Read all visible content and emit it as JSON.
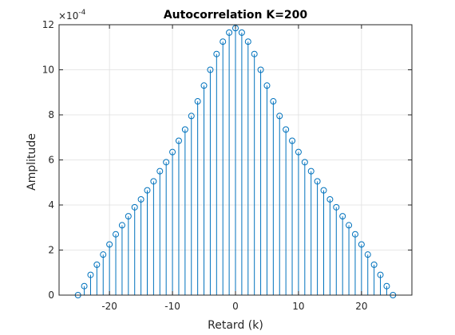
{
  "chart_data": {
    "type": "stem",
    "title": "Autocorrelation K=200",
    "xlabel": "Retard (k)",
    "ylabel": "Amplitude",
    "ylabel_exponent": "×10",
    "ylabel_exponent_power": "-4",
    "xlim": [
      -28,
      28
    ],
    "ylim": [
      0,
      12
    ],
    "xticks": [
      -20,
      -10,
      0,
      10,
      20
    ],
    "xtick_labels": [
      "-20",
      "-10",
      "0",
      "10",
      "20"
    ],
    "yticks": [
      0,
      2,
      4,
      6,
      8,
      10,
      12
    ],
    "ytick_labels": [
      "0",
      "2",
      "4",
      "6",
      "8",
      "10",
      "12"
    ],
    "grid": true,
    "colors": {
      "stem": "#0072BD",
      "grid": "#dfdfdf",
      "axis": "#262626"
    },
    "x": [
      -25,
      -24,
      -23,
      -22,
      -21,
      -20,
      -19,
      -18,
      -17,
      -16,
      -15,
      -14,
      -13,
      -12,
      -11,
      -10,
      -9,
      -8,
      -7,
      -6,
      -5,
      -4,
      -3,
      -2,
      -1,
      0,
      1,
      2,
      3,
      4,
      5,
      6,
      7,
      8,
      9,
      10,
      11,
      12,
      13,
      14,
      15,
      16,
      17,
      18,
      19,
      20,
      21,
      22,
      23,
      24,
      25
    ],
    "values": [
      0.0,
      0.4,
      0.9,
      1.35,
      1.8,
      2.25,
      2.7,
      3.1,
      3.5,
      3.9,
      4.25,
      4.65,
      5.05,
      5.5,
      5.9,
      6.35,
      6.85,
      7.35,
      7.95,
      8.6,
      9.3,
      10.0,
      10.7,
      11.25,
      11.65,
      11.85,
      11.65,
      11.25,
      10.7,
      10.0,
      9.3,
      8.6,
      7.95,
      7.35,
      6.85,
      6.35,
      5.9,
      5.5,
      5.05,
      4.65,
      4.25,
      3.9,
      3.5,
      3.1,
      2.7,
      2.25,
      1.8,
      1.35,
      0.9,
      0.4,
      0.0
    ]
  }
}
